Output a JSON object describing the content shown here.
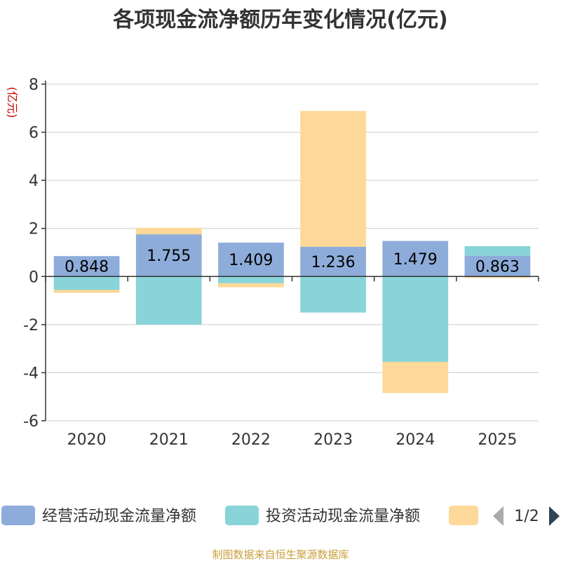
{
  "chart_data": {
    "type": "bar",
    "stacked": true,
    "title": "各项现金流净额历年变化情况(亿元)",
    "ylabel": "(亿元)",
    "xlabel": "",
    "ylim": [
      -6,
      8
    ],
    "yticks": [
      -6,
      -4,
      -2,
      0,
      2,
      4,
      6,
      8
    ],
    "grid": true,
    "categories": [
      "2020",
      "2021",
      "2022",
      "2023",
      "2024",
      "2025"
    ],
    "series": [
      {
        "name": "经营活动现金流量净额",
        "color": "#8eacda",
        "values": [
          0.848,
          1.755,
          1.409,
          1.236,
          1.479,
          0.863
        ],
        "labels": [
          "0.848",
          "1.755",
          "1.409",
          "1.236",
          "1.479",
          "0.863"
        ]
      },
      {
        "name": "投资活动现金流量净额",
        "color": "#88d4d8",
        "values": [
          -0.56,
          -2.0,
          -0.28,
          -1.5,
          -3.55,
          0.4
        ]
      },
      {
        "name": "",
        "color": "#fdd898",
        "values": [
          -0.12,
          0.27,
          -0.17,
          5.65,
          -1.3,
          -0.06
        ]
      }
    ],
    "legend": {
      "position": "bottom",
      "page": "1/2"
    }
  },
  "source": "制图数据来自恒生聚源数据库"
}
